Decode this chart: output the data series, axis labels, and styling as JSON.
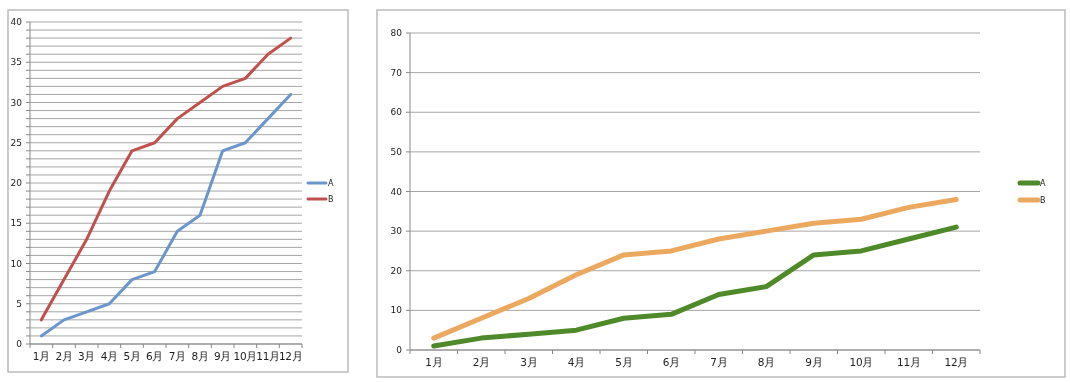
{
  "chart_data": [
    {
      "type": "line",
      "categories": [
        "1月",
        "2月",
        "3月",
        "4月",
        "5月",
        "6月",
        "7月",
        "8月",
        "9月",
        "10月",
        "11月",
        "12月"
      ],
      "series": [
        {
          "name": "A",
          "color": "#6a96cc",
          "values": [
            1,
            3,
            4,
            5,
            8,
            9,
            14,
            16,
            24,
            25,
            28,
            31
          ]
        },
        {
          "name": "B",
          "color": "#c0504d",
          "values": [
            3,
            8,
            13,
            19,
            24,
            25,
            28,
            30,
            32,
            33,
            36,
            38
          ]
        }
      ],
      "ylim": [
        0,
        40
      ],
      "yticks": [
        0,
        {
          "value": 1,
          "label": null
        },
        {
          "value": 2,
          "label": null
        },
        {
          "value": 3,
          "label": null
        },
        {
          "value": 4,
          "label": null
        },
        5,
        {
          "value": 6,
          "label": null
        },
        {
          "value": 7,
          "label": null
        },
        {
          "value": 8,
          "label": null
        },
        {
          "value": 9,
          "label": null
        },
        10,
        {
          "value": 11,
          "label": null
        },
        {
          "value": 12,
          "label": null
        },
        {
          "value": 13,
          "label": null
        },
        {
          "value": 14,
          "label": null
        },
        15,
        {
          "value": 16,
          "label": null
        },
        {
          "value": 17,
          "label": null
        },
        {
          "value": 18,
          "label": null
        },
        {
          "value": 19,
          "label": null
        },
        20,
        {
          "value": 21,
          "label": null
        },
        {
          "value": 22,
          "label": null
        },
        {
          "value": 23,
          "label": null
        },
        {
          "value": 24,
          "label": null
        },
        25,
        {
          "value": 26,
          "label": null
        },
        {
          "value": 27,
          "label": null
        },
        {
          "value": 28,
          "label": null
        },
        {
          "value": 29,
          "label": null
        },
        30,
        {
          "value": 31,
          "label": null
        },
        {
          "value": 32,
          "label": null
        },
        {
          "value": 33,
          "label": null
        },
        {
          "value": 34,
          "label": null
        },
        35,
        {
          "value": 36,
          "label": null
        },
        {
          "value": 37,
          "label": null
        },
        {
          "value": 38,
          "label": null
        },
        {
          "value": 39,
          "label": null
        },
        40
      ],
      "grid": "y",
      "legend": "right",
      "marker": "none",
      "line_style": "solid"
    },
    {
      "type": "line",
      "categories": [
        "1月",
        "2月",
        "3月",
        "4月",
        "5月",
        "6月",
        "7月",
        "8月",
        "9月",
        "10月",
        "11月",
        "12月"
      ],
      "series": [
        {
          "name": "A",
          "color": "#4f8a2a",
          "values": [
            1,
            3,
            4,
            5,
            8,
            9,
            14,
            16,
            24,
            25,
            28,
            31
          ]
        },
        {
          "name": "B",
          "color": "#eba85f",
          "values": [
            3,
            8,
            13,
            19,
            24,
            25,
            28,
            30,
            32,
            33,
            36,
            38
          ]
        }
      ],
      "ylim": [
        0,
        80
      ],
      "yticks": [
        0,
        10,
        20,
        30,
        40,
        50,
        60,
        70,
        80
      ],
      "grid": "y",
      "legend": "right",
      "marker": "none",
      "line_style": "solid"
    }
  ]
}
